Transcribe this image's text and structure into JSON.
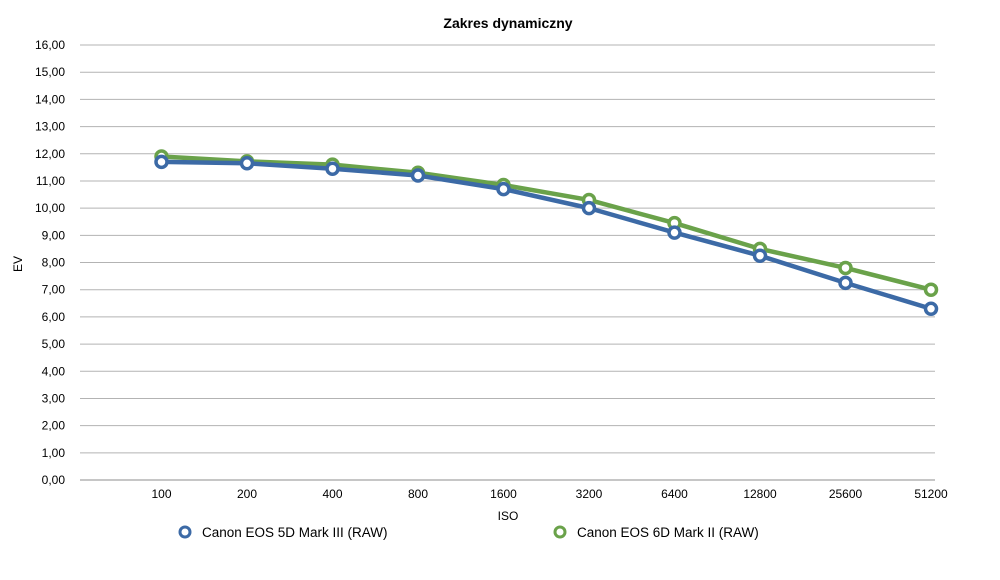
{
  "chart_data": {
    "type": "line",
    "title": "Zakres dynamiczny",
    "xlabel": "ISO",
    "ylabel": "EV",
    "categories": [
      "100",
      "200",
      "400",
      "800",
      "1600",
      "3200",
      "6400",
      "12800",
      "25600",
      "51200"
    ],
    "ylim": [
      0,
      16
    ],
    "ytick_labels": [
      "0,00",
      "1,00",
      "2,00",
      "3,00",
      "4,00",
      "5,00",
      "6,00",
      "7,00",
      "8,00",
      "9,00",
      "10,00",
      "11,00",
      "12,00",
      "13,00",
      "14,00",
      "15,00",
      "16,00"
    ],
    "grid": true,
    "legend_position": "bottom",
    "series": [
      {
        "name": "Canon EOS 5D Mark III (RAW)",
        "color": "#3c6aa6",
        "values": [
          11.7,
          11.65,
          11.45,
          11.2,
          10.7,
          10.0,
          9.1,
          8.25,
          7.25,
          6.3
        ]
      },
      {
        "name": "Canon EOS 6D Mark II (RAW)",
        "color": "#6aa24a",
        "values": [
          11.9,
          11.72,
          11.6,
          11.3,
          10.85,
          10.3,
          9.45,
          8.5,
          7.8,
          7.0
        ]
      }
    ]
  }
}
